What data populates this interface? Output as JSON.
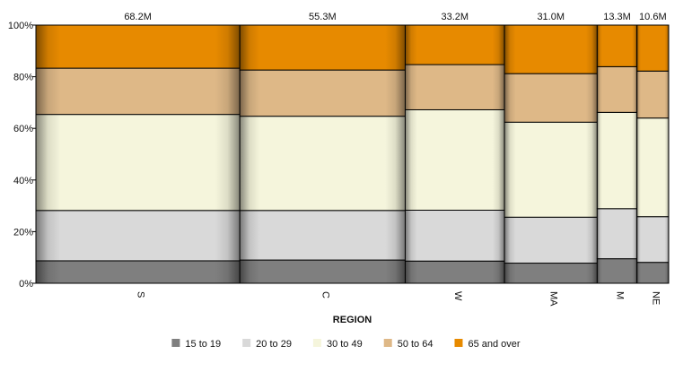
{
  "chart_data": {
    "type": "bar",
    "subtype": "marimekko-100-stacked",
    "title": "",
    "xlabel": "REGION",
    "ylabel": "",
    "ylim": [
      0,
      100
    ],
    "y_ticks": [
      "0%",
      "20%",
      "40%",
      "60%",
      "80%",
      "100%"
    ],
    "grid": false,
    "legend_position": "bottom",
    "categories": [
      "S",
      "C",
      "W",
      "MA",
      "M",
      "NE"
    ],
    "totals": [
      68.2,
      55.3,
      33.2,
      31.0,
      13.3,
      10.6
    ],
    "total_labels": [
      "68.2M",
      "55.3M",
      "33.2M",
      "31.0M",
      "13.3M",
      "10.6M"
    ],
    "series": [
      {
        "name": "15 to 19",
        "color": "#7f7f7f",
        "values": [
          8.7,
          9.0,
          8.6,
          7.8,
          9.5,
          8.1
        ]
      },
      {
        "name": "20 to 29",
        "color": "#d9d9d9",
        "values": [
          19.5,
          19.2,
          19.7,
          17.8,
          19.4,
          17.7
        ]
      },
      {
        "name": "30 to 49",
        "color": "#f5f5dc",
        "values": [
          37.2,
          36.5,
          38.9,
          36.8,
          37.3,
          38.2
        ]
      },
      {
        "name": "50 to 64",
        "color": "#deb887",
        "values": [
          17.9,
          17.9,
          17.5,
          18.8,
          17.7,
          18.2
        ]
      },
      {
        "name": "65 and over",
        "color": "#e78a00",
        "values": [
          16.7,
          17.4,
          15.3,
          18.8,
          16.1,
          17.8
        ]
      }
    ]
  }
}
